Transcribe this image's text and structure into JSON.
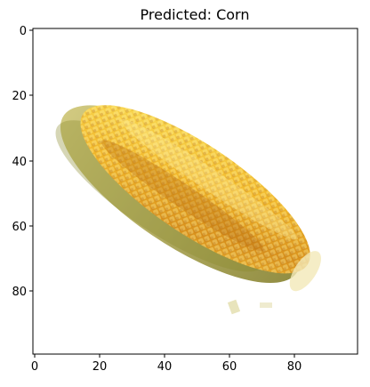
{
  "figure": {
    "title": "Predicted: Corn",
    "image_subject": "corn cob",
    "x_axis": {
      "range": [
        0,
        100
      ],
      "ticks": [
        "0",
        "20",
        "40",
        "60",
        "80"
      ]
    },
    "y_axis": {
      "range": [
        0,
        100
      ],
      "inverted": true,
      "ticks": [
        "0",
        "20",
        "40",
        "60",
        "80"
      ]
    },
    "colors": {
      "husk": "#9f9a3e",
      "kernel_light": "#f8d43a",
      "kernel_mid": "#e9a81f",
      "kernel_dark": "#b5670f",
      "background": "#ffffff",
      "axis": "#000000"
    }
  }
}
